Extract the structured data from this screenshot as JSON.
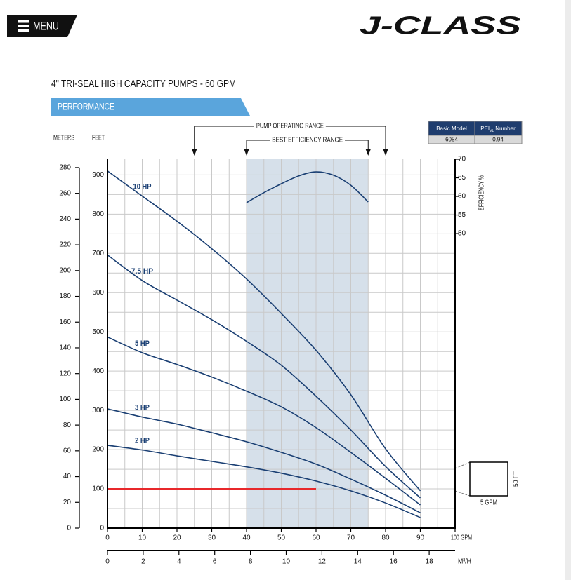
{
  "header": {
    "menu": "MENU",
    "logo": "J-CLASS"
  },
  "title": "4\" TRI-SEAL HIGH CAPACITY PUMPS - 60 GPM",
  "section": "PERFORMANCE",
  "table": {
    "headers": [
      "Basic Model",
      "PEI",
      "Number"
    ],
    "header_subscript": "VL",
    "rows": [
      [
        "6054",
        "0.94"
      ]
    ]
  },
  "chart_data": {
    "type": "line",
    "x": [
      0,
      10,
      20,
      30,
      40,
      50,
      60,
      70,
      80,
      90
    ],
    "series": [
      {
        "name": "10 HP",
        "color": "#1a3f73",
        "values": [
          910,
          846,
          782,
          712,
          635,
          547,
          453,
          340,
          202,
          95
        ]
      },
      {
        "name": "7.5 HP",
        "color": "#1a3f73",
        "values": [
          696,
          631,
          581,
          531,
          476,
          415,
          336,
          250,
          157,
          77
        ]
      },
      {
        "name": "5 HP",
        "color": "#1a3f73",
        "values": [
          487,
          447,
          417,
          385,
          349,
          309,
          256,
          193,
          127,
          59
        ]
      },
      {
        "name": "3 HP",
        "color": "#1a3f73",
        "values": [
          304,
          283,
          265,
          243,
          220,
          193,
          163,
          125,
          84,
          39
        ]
      },
      {
        "name": "2 HP",
        "color": "#1a3f73",
        "values": [
          211,
          199,
          184,
          170,
          156,
          140,
          120,
          95,
          64,
          27
        ]
      }
    ],
    "efficiency": {
      "axis": "y2",
      "color": "#1a3f73",
      "x": [
        40,
        45,
        50,
        55,
        60,
        65,
        70,
        75
      ],
      "values": [
        58.3,
        61,
        63.4,
        65.5,
        66.6,
        65.7,
        63,
        58.5
      ]
    },
    "reference_line": {
      "color": "#e8282b",
      "x": [
        0,
        60
      ],
      "values": [
        100,
        100
      ]
    },
    "operating_range": {
      "label": "PUMP OPERATING RANGE",
      "x": [
        25,
        80
      ]
    },
    "best_efficiency_range": {
      "label": "BEST EFFICIENCY RANGE",
      "x": [
        40,
        75
      ],
      "color": "#d6e0ea"
    },
    "xlim": [
      0,
      100
    ],
    "xticks": [
      0,
      10,
      20,
      30,
      40,
      50,
      60,
      70,
      80,
      {
        "value": 90,
        "label": "90"
      },
      {
        "value": 100,
        "label": "100 GPM"
      }
    ],
    "x2lim": [
      0,
      19.45
    ],
    "x2ticks": [
      0,
      2,
      4,
      6,
      8,
      10,
      12,
      14,
      16,
      18
    ],
    "x2label": "M³/H",
    "ylim": [
      0,
      940
    ],
    "yticks": [
      0,
      100,
      200,
      300,
      400,
      500,
      600,
      700,
      800,
      900
    ],
    "ylabel": "FEET",
    "meters_axis": {
      "label": "METERS",
      "lim": [
        0,
        286.5
      ],
      "ticks": [
        0,
        20,
        40,
        60,
        80,
        100,
        120,
        140,
        160,
        180,
        200,
        220,
        240,
        260,
        280
      ]
    },
    "y2lim": [
      -29.2,
      70
    ],
    "y2ticks": [
      50,
      55,
      60,
      65,
      70
    ],
    "y2label": "EFFICIENCY %",
    "scale_box": {
      "width_label": "5 GPM",
      "height_label": "50 FT"
    },
    "grid": true
  }
}
